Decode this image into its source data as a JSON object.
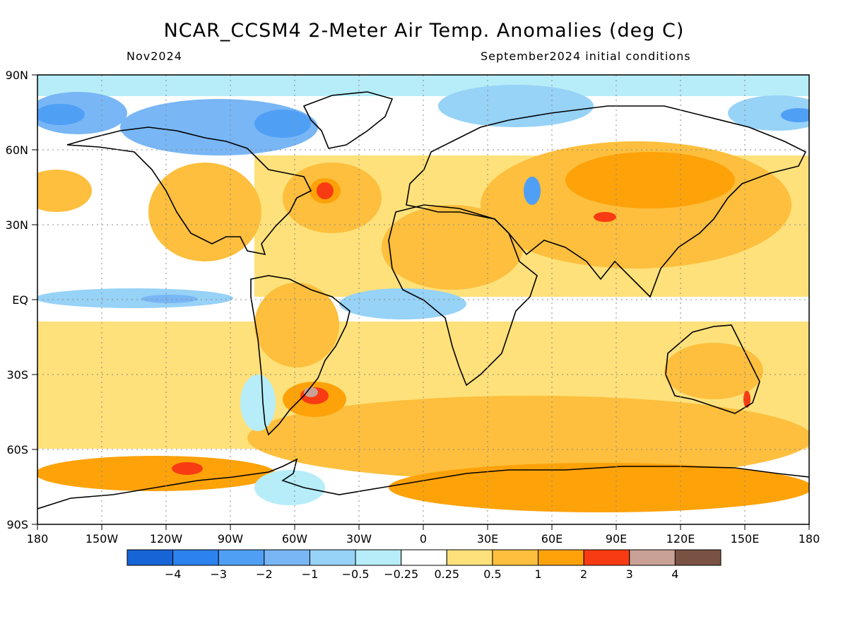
{
  "title": "NCAR_CCSM4 2-Meter Air Temp. Anomalies (deg C)",
  "subtitle_left": "Nov2024",
  "subtitle_right": "September2024 initial conditions",
  "map": {
    "projection": "equirectangular",
    "lon_range": [
      -180,
      180
    ],
    "lat_range": [
      -90,
      90
    ],
    "grid": "dotted",
    "lat_labels": [
      "90N",
      "60N",
      "30N",
      "EQ",
      "30S",
      "60S",
      "90S"
    ],
    "lon_labels": [
      "180",
      "150W",
      "120W",
      "90W",
      "60W",
      "30W",
      "0",
      "30E",
      "60E",
      "90E",
      "120E",
      "150E",
      "180"
    ]
  },
  "colorbar": {
    "colors": [
      "#1764d6",
      "#2c82ee",
      "#4fa0f5",
      "#78b6f5",
      "#97d2f7",
      "#b6edf8",
      "#ffffff",
      "#fee17a",
      "#fdbf3d",
      "#fea20a",
      "#f83b12",
      "#c9a196",
      "#7a5243"
    ],
    "labels": [
      "-4",
      "-3",
      "-2",
      "-1",
      "-0.5",
      "-0.25",
      "0.25",
      "0.5",
      "1",
      "2",
      "3",
      "4"
    ]
  },
  "regions": {
    "warm_strong": "#f83b12",
    "extreme": "#c9a196"
  }
}
